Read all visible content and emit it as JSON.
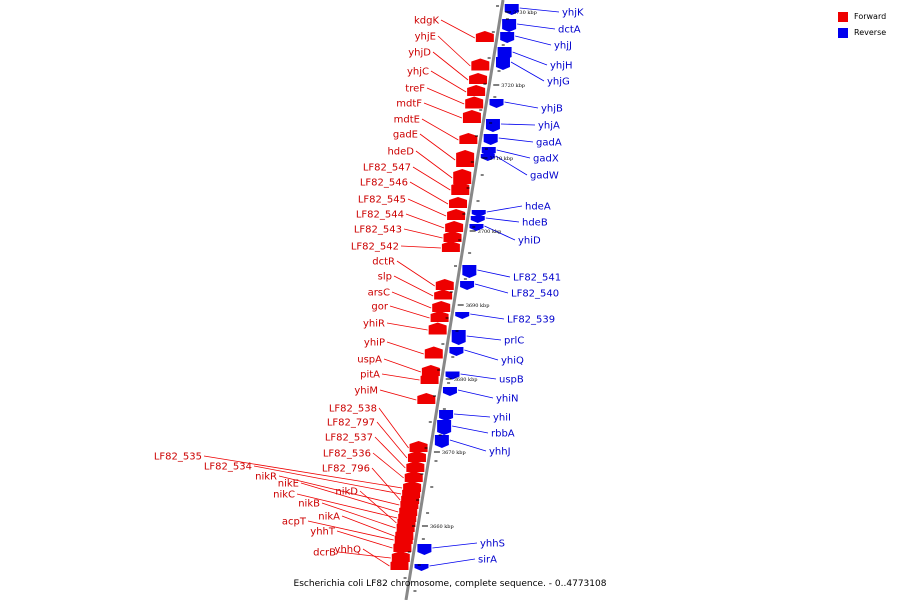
{
  "legend": [
    {
      "label": "Forward",
      "color": "#ee0000"
    },
    {
      "label": "Reverse",
      "color": "#0000ee"
    }
  ],
  "caption": "Escherichia coli LF82 chromosome, complete sequence. - 0..4773108",
  "scale_ticks": [
    "3730 kbp",
    "3720 kbp",
    "3710 kbp",
    "3700 kbp",
    "3690 kbp",
    "3680 kbp",
    "3670 kbp",
    "3660 kbp"
  ],
  "forward_genes": [
    "kdgK",
    "yhjE",
    "yhjD",
    "yhjC",
    "treF",
    "mdtF",
    "mdtE",
    "gadE",
    "hdeD",
    "LF82_547",
    "LF82_546",
    "LF82_545",
    "LF82_544",
    "LF82_543",
    "LF82_542",
    "dctR",
    "slp",
    "arsC",
    "gor",
    "yhiR",
    "yhiP",
    "uspA",
    "pitA",
    "yhiM",
    "LF82_538",
    "LF82_797",
    "LF82_537",
    "LF82_536",
    "LF82_535",
    "LF82_534",
    "LF82_796",
    "nikR",
    "nikE",
    "nikC",
    "nikD",
    "nikB",
    "nikA",
    "acpT",
    "yhhT",
    "dcrB",
    "yhhQ"
  ],
  "reverse_genes": [
    "yhjK",
    "dctA",
    "yhjJ",
    "yhjH",
    "yhjG",
    "yhjB",
    "yhjA",
    "gadA",
    "gadX",
    "gadW",
    "hdeA",
    "hdeB",
    "yhiD",
    "LF82_541",
    "LF82_540",
    "LF82_539",
    "prlC",
    "yhiQ",
    "uspB",
    "yhiN",
    "yhiI",
    "rbbA",
    "yhhJ",
    "yhhS",
    "sirA"
  ]
}
